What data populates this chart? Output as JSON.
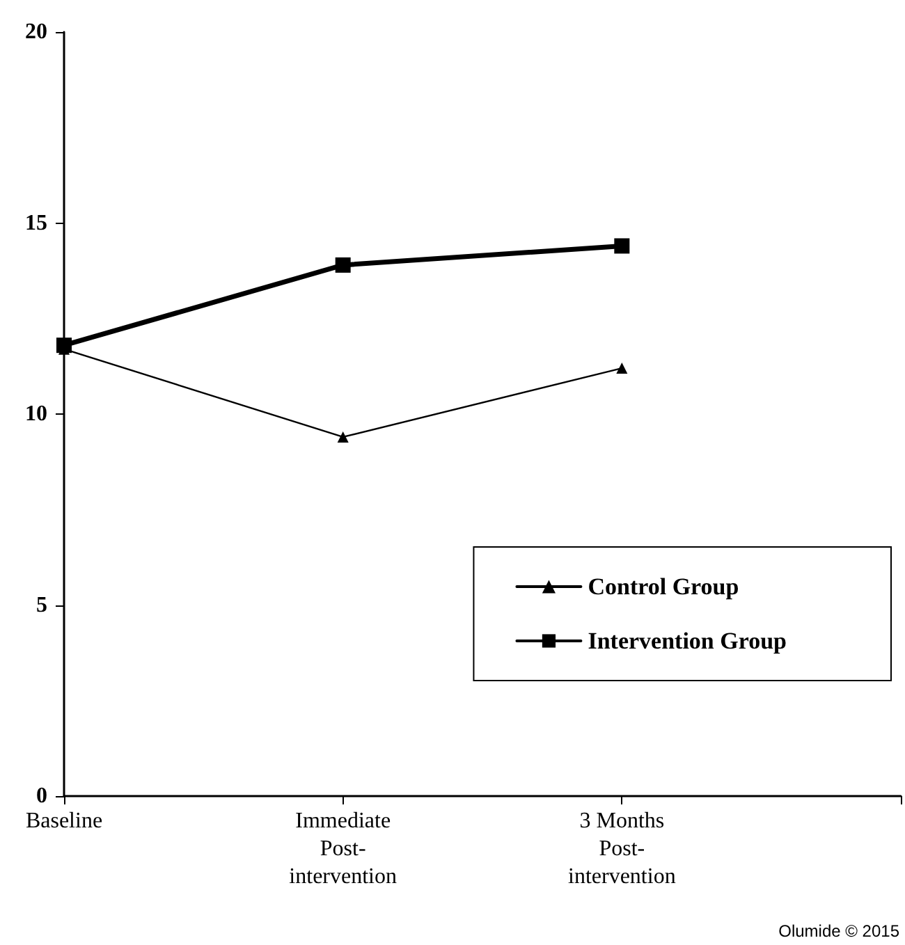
{
  "chart_data": {
    "type": "line",
    "categories": [
      "Baseline",
      "Immediate Post-intervention",
      "3 Months Post-intervention",
      null
    ],
    "series": [
      {
        "name": "Control Group",
        "color": "#000000",
        "marker": "triangle",
        "values": [
          11.7,
          9.4,
          11.2,
          null
        ]
      },
      {
        "name": "Intervention Group",
        "color": "#000000",
        "marker": "square",
        "values": [
          11.8,
          13.9,
          14.4,
          null
        ]
      }
    ],
    "ylim": [
      0,
      20
    ],
    "yticks": [
      0,
      5,
      10,
      15,
      20
    ],
    "grid": false,
    "legend": "right",
    "line_style": "solid",
    "annotations": [
      "Olumide © 2015"
    ]
  }
}
